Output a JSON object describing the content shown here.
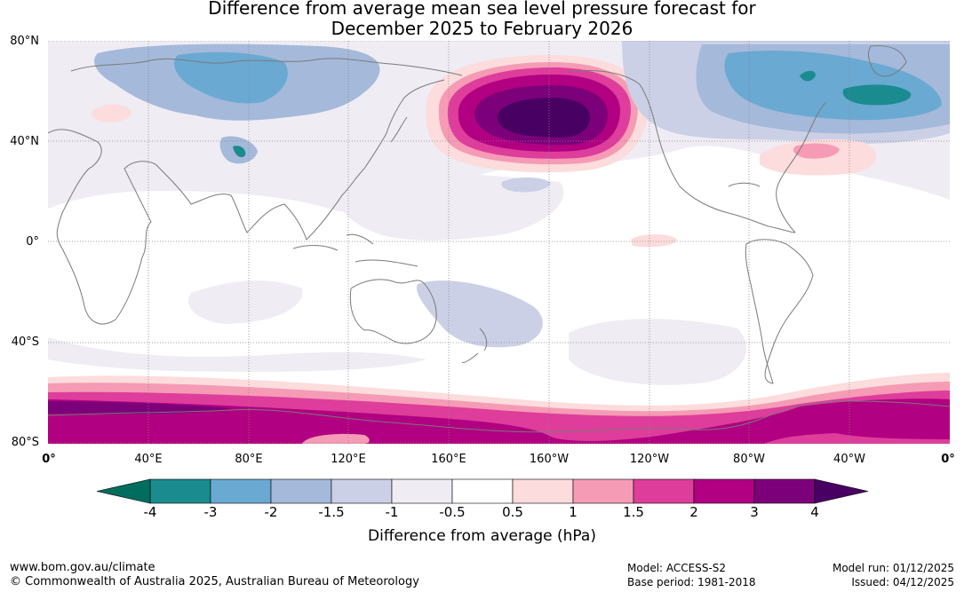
{
  "title": {
    "line1": "Difference from average mean sea level pressure forecast for",
    "line2": "December 2025 to February 2026"
  },
  "map": {
    "lat_labels": [
      "80°N",
      "40°N",
      "0°",
      "40°S",
      "80°S"
    ],
    "lon_labels": [
      "0°",
      "40°E",
      "80°E",
      "120°E",
      "160°E",
      "160°W",
      "120°W",
      "80°W",
      "40°W",
      "0°"
    ],
    "anomaly_regions": [
      {
        "region": "North Pacific / Aleutian",
        "value_range": "3 to 4+"
      },
      {
        "region": "Southern Ocean / Antarctica",
        "value_range": "1.5 to 3"
      },
      {
        "region": "North Atlantic / Greenland",
        "value_range": "-4 to -1.5"
      },
      {
        "region": "Siberia / Central Asia",
        "value_range": "-3 to -1"
      },
      {
        "region": "Subtropical North Atlantic",
        "value_range": "0.5 to 1.5"
      },
      {
        "region": "Southwest Pacific",
        "value_range": "-1.5 to -0.5"
      }
    ]
  },
  "colorbar": {
    "ticks": [
      "-4",
      "-3",
      "-2",
      "-1.5",
      "-1",
      "-0.5",
      "0.5",
      "1",
      "1.5",
      "2",
      "3",
      "4"
    ],
    "colors": [
      "#1a8b8e",
      "#6aa9d2",
      "#a5b9da",
      "#cbd0e6",
      "#efecf4",
      "#ffffff",
      "#fcdcdc",
      "#f59bb5",
      "#de3d9b",
      "#b10081",
      "#7d007b"
    ],
    "under_color": "#006d5e",
    "over_color": "#490063",
    "caption": "Difference from average (hPa)"
  },
  "footer": {
    "url": "www.bom.gov.au/climate",
    "copyright": "© Commonwealth of Australia 2025, Australian Bureau of Meteorology",
    "model": "Model: ACCESS-S2",
    "base_period": "Base period: 1981-2018",
    "model_run": "Model run: 01/12/2025",
    "issued": "Issued: 04/12/2025"
  }
}
